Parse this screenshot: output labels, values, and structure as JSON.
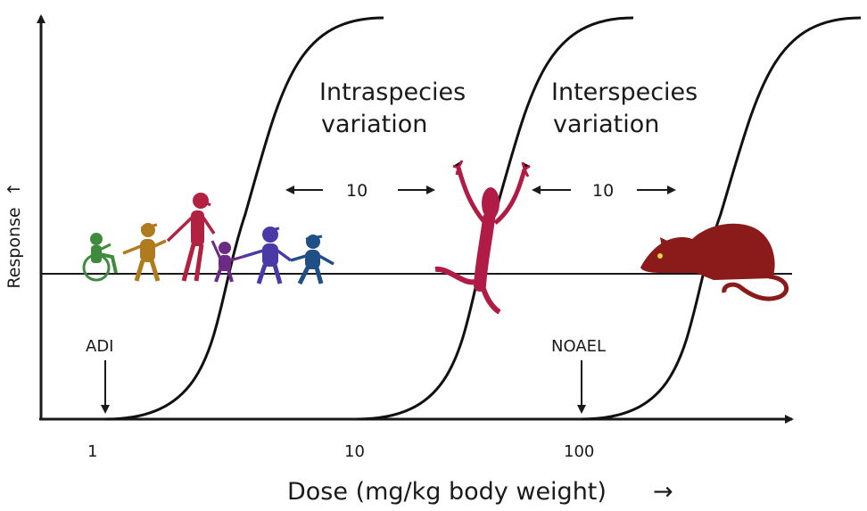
{
  "axes": {
    "y_label": "Response",
    "x_label": "Dose (mg/kg body weight)",
    "y_arrow_glyph": "↑",
    "x_arrow_glyph": "→",
    "ticks": [
      "1",
      "10",
      "100"
    ]
  },
  "markers": {
    "adi": "ADI",
    "noael": "NOAEL"
  },
  "annotations": {
    "intraspecies": {
      "line1": "Intraspecies",
      "line2": "variation",
      "factor": "10"
    },
    "interspecies": {
      "line1": "Interspecies",
      "line2": "variation",
      "factor": "10"
    }
  },
  "figures": {
    "human_group_icons": [
      "wheelchair-person-icon",
      "child-icon",
      "adult-icon",
      "toddler-icon",
      "child-icon",
      "child-icon"
    ],
    "human_icon": "jumping-human-icon",
    "animal_icon": "rat-icon"
  },
  "colors": {
    "wheelchair": "#3f8a3c",
    "child_orange": "#b07a1e",
    "adult": "#b2213f",
    "toddler": "#6b2a86",
    "child_blue": "#4a3aa8",
    "child_navy": "#1f4f86",
    "human": "#b01c45",
    "rat": "#8b1a1a"
  }
}
